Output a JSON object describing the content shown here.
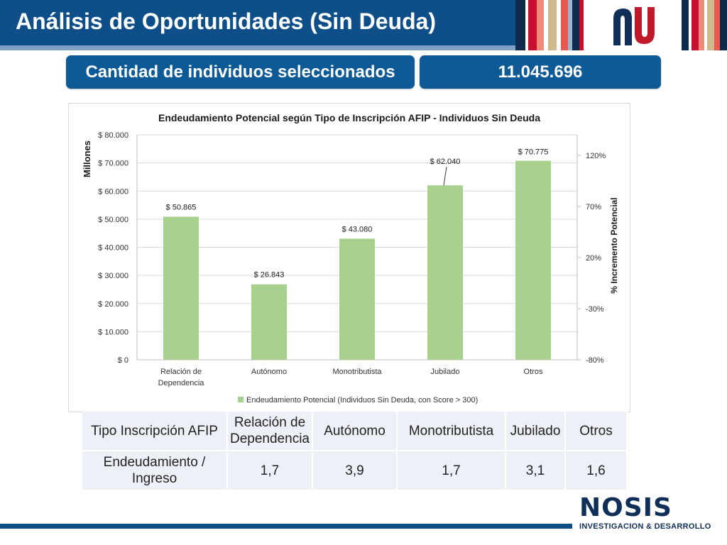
{
  "header": {
    "title": "Análisis de Oportunidades (Sin Deuda)"
  },
  "summary": {
    "label": "Cantidad de individuos seleccionados",
    "value": "11.045.696"
  },
  "colors": {
    "header_blue": "#0e4f8a",
    "pill_blue": "#0e5a96",
    "bar_green": "#a9d18e",
    "logo_red": "#c0192c",
    "logo_navy": "#0f2f58"
  },
  "chart_data": {
    "type": "bar",
    "title": "Endeudamiento Potencial según Tipo de Inscripción  AFIP - Individuos Sin Deuda",
    "ylabel": "Millones",
    "y2label": "% Incremento Potencial",
    "categories": [
      "Relación de Dependencia",
      "Autónomo",
      "Monotributista",
      "Jubilado",
      "Otros"
    ],
    "series": [
      {
        "name": "Endeudamiento Potencial (Individuos Sin Deuda, con Score > 300)",
        "values": [
          50865,
          26843,
          43080,
          62040,
          70775
        ],
        "labels": [
          "$ 50.865",
          "$ 26.843",
          "$ 43.080",
          "$ 62.040",
          "$ 70.775"
        ]
      }
    ],
    "ylim": [
      0,
      80000
    ],
    "yticks": [
      "$ 0",
      "$ 10.000",
      "$ 20.000",
      "$ 30.000",
      "$ 40.000",
      "$ 50.000",
      "$ 60.000",
      "$ 70.000",
      "$ 80.000"
    ],
    "y2lim": [
      -80,
      140
    ],
    "y2ticks": [
      "-80%",
      "-30%",
      "20%",
      "70%",
      "120%"
    ],
    "grid": true,
    "legend": "bottom"
  },
  "table": {
    "header": [
      "Tipo Inscripción AFIP",
      "Relación de Dependencia",
      "Autónomo",
      "Monotributista",
      "Jubilado",
      "Otros"
    ],
    "row": [
      "Endeudamiento / Ingreso",
      "1,7",
      "3,9",
      "1,7",
      "3,1",
      "1,6"
    ]
  },
  "brand": {
    "name": "NOSIS",
    "subtitle": "INVESTIGACION & DESARROLLO"
  }
}
